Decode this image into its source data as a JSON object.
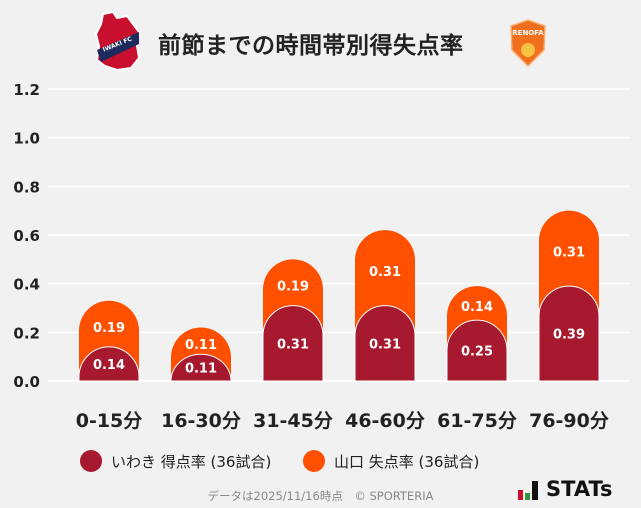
{
  "title": "前節までの時間帯別得失点率",
  "logos": {
    "left": "IWAKI FC",
    "right": "RENOFA"
  },
  "chart_data": {
    "type": "bar",
    "stacked": true,
    "categories": [
      "0-15分",
      "16-30分",
      "31-45分",
      "46-60分",
      "61-75分",
      "76-90分"
    ],
    "series": [
      {
        "name": "いわき 得点率 (36試合)",
        "color": "#a6192e",
        "values": [
          0.14,
          0.11,
          0.31,
          0.31,
          0.25,
          0.39
        ]
      },
      {
        "name": "山口 失点率 (36試合)",
        "color": "#ff5000",
        "values": [
          0.19,
          0.11,
          0.19,
          0.31,
          0.14,
          0.31
        ]
      }
    ],
    "ylim": [
      0,
      1.2
    ],
    "yticks": [
      "0.0",
      "0.2",
      "0.4",
      "0.6",
      "0.8",
      "1.0",
      "1.2"
    ],
    "grid": true,
    "legend": "bottom"
  },
  "footer": "データは2025/11/16時点　© SPORTERIA",
  "brand": "STATs"
}
